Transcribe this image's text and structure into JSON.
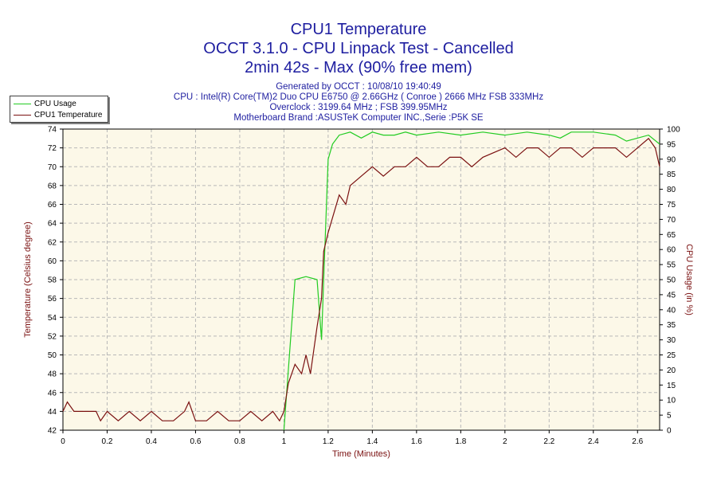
{
  "header": {
    "title_line1": "CPU1 Temperature",
    "title_line2": "OCCT 3.1.0 - CPU Linpack Test - Cancelled",
    "title_line3": "2min 42s - Max (90% free mem)",
    "info_line1": "Generated by OCCT : 10/08/10 19:40:49",
    "info_line2": "CPU : Intel(R) Core(TM)2 Duo CPU E6750 @ 2.66GHz ( Conroe ) 2666 MHz FSB 333MHz",
    "info_line3": "Overclock : 3199.64 MHz ; FSB 399.95MHz",
    "info_line4": "Motherboard Brand :ASUSTeK Computer INC.,Serie :P5K SE"
  },
  "legend": {
    "items": [
      {
        "label": "CPU Usage",
        "color": "#22cc22"
      },
      {
        "label": "CPU1 Temperature",
        "color": "#7a1010"
      }
    ]
  },
  "colors": {
    "plot_bg": "#fcf8e8",
    "grid": "#b8b8b8",
    "usage": "#22cc22",
    "temp": "#7a1010",
    "title": "#1e1ea0"
  },
  "chart_data": {
    "type": "line",
    "xlabel": "Time (Minutes)",
    "ylabel_left": "Temperature (Celsius degree)",
    "ylabel_right": "CPU Usage (in %)",
    "xlim": [
      0,
      2.7
    ],
    "ylim_left": [
      42,
      74
    ],
    "ylim_right": [
      0,
      100
    ],
    "x_ticks": [
      "0",
      "0.2",
      "0.4",
      "0.6",
      "0.8",
      "1",
      "1.2",
      "1.4",
      "1.6",
      "1.8",
      "2",
      "2.2",
      "2.4",
      "2.6"
    ],
    "y_left_ticks": [
      "42",
      "44",
      "46",
      "48",
      "50",
      "52",
      "54",
      "56",
      "58",
      "60",
      "62",
      "64",
      "66",
      "68",
      "70",
      "72",
      "74"
    ],
    "y_right_ticks": [
      "0",
      "5",
      "10",
      "15",
      "20",
      "25",
      "30",
      "35",
      "40",
      "45",
      "50",
      "55",
      "60",
      "65",
      "70",
      "75",
      "80",
      "85",
      "90",
      "95",
      "100"
    ],
    "grid": true,
    "legend_position": "top-left",
    "series": [
      {
        "name": "CPU Usage",
        "axis": "right",
        "x": [
          1.0,
          1.03,
          1.05,
          1.1,
          1.15,
          1.17,
          1.18,
          1.2,
          1.22,
          1.25,
          1.3,
          1.35,
          1.4,
          1.45,
          1.5,
          1.55,
          1.6,
          1.7,
          1.8,
          1.9,
          2.0,
          2.1,
          2.2,
          2.25,
          2.3,
          2.4,
          2.5,
          2.55,
          2.6,
          2.65,
          2.7
        ],
        "y": [
          0,
          30,
          50,
          51,
          50,
          30,
          50,
          90,
          95,
          98,
          99,
          97,
          99,
          98,
          98,
          99,
          98,
          99,
          98,
          99,
          98,
          99,
          98,
          97,
          99,
          99,
          98,
          96,
          97,
          98,
          95
        ]
      },
      {
        "name": "CPU1 Temperature",
        "axis": "left",
        "x": [
          0,
          0.02,
          0.05,
          0.1,
          0.15,
          0.17,
          0.2,
          0.25,
          0.3,
          0.35,
          0.4,
          0.45,
          0.5,
          0.55,
          0.57,
          0.6,
          0.65,
          0.7,
          0.75,
          0.8,
          0.85,
          0.9,
          0.95,
          0.98,
          1.0,
          1.02,
          1.05,
          1.08,
          1.1,
          1.12,
          1.15,
          1.17,
          1.18,
          1.2,
          1.25,
          1.28,
          1.3,
          1.35,
          1.4,
          1.45,
          1.5,
          1.55,
          1.6,
          1.65,
          1.7,
          1.75,
          1.8,
          1.85,
          1.9,
          2.0,
          2.05,
          2.1,
          2.15,
          2.2,
          2.25,
          2.3,
          2.35,
          2.4,
          2.45,
          2.5,
          2.55,
          2.6,
          2.65,
          2.68,
          2.7
        ],
        "y": [
          44,
          45,
          44,
          44,
          44,
          43,
          44,
          43,
          44,
          43,
          44,
          43,
          43,
          44,
          45,
          43,
          43,
          44,
          43,
          43,
          44,
          43,
          44,
          43,
          44,
          47,
          49,
          48,
          50,
          48,
          53,
          56,
          61,
          63,
          67,
          66,
          68,
          69,
          70,
          69,
          70,
          70,
          71,
          70,
          70,
          71,
          71,
          70,
          71,
          72,
          71,
          72,
          72,
          71,
          72,
          72,
          71,
          72,
          72,
          72,
          71,
          72,
          73,
          72,
          70
        ]
      }
    ]
  }
}
